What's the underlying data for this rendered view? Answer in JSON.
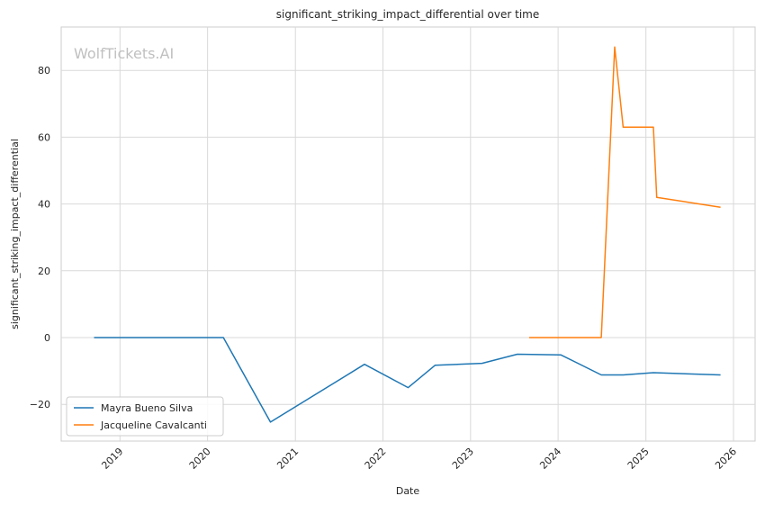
{
  "chart_data": {
    "type": "line",
    "title": "significant_striking_impact_differential over time",
    "xlabel": "Date",
    "ylabel": "significant_striking_impact_differential",
    "watermark": "WolfTickets.AI",
    "xlim": [
      "2018-05-01",
      "2026-04-01"
    ],
    "ylim": [
      -31,
      93
    ],
    "xticks": [
      "2019",
      "2020",
      "2021",
      "2022",
      "2023",
      "2024",
      "2025",
      "2026"
    ],
    "yticks": [
      -20,
      0,
      20,
      40,
      60,
      80
    ],
    "ytick_labels": [
      "−20",
      "0",
      "20",
      "40",
      "60",
      "80"
    ],
    "grid": true,
    "legend_position": "lower-left",
    "series": [
      {
        "name": "Mayra Bueno Silva",
        "color": "#1f77b4",
        "points": [
          {
            "x": "2018-09-15",
            "y": 0
          },
          {
            "x": "2020-03-07",
            "y": 0
          },
          {
            "x": "2020-09-19",
            "y": -25.3
          },
          {
            "x": "2021-10-16",
            "y": -8
          },
          {
            "x": "2022-04-16",
            "y": -15
          },
          {
            "x": "2022-08-06",
            "y": -8.3
          },
          {
            "x": "2023-02-18",
            "y": -7.7
          },
          {
            "x": "2023-07-15",
            "y": -5
          },
          {
            "x": "2024-01-13",
            "y": -5.2
          },
          {
            "x": "2024-06-29",
            "y": -11.2
          },
          {
            "x": "2024-09-28",
            "y": -11.2
          },
          {
            "x": "2025-02-01",
            "y": -10.5
          },
          {
            "x": "2025-11-08",
            "y": -11.2
          }
        ]
      },
      {
        "name": "Jacqueline Cavalcanti",
        "color": "#ff7f0e",
        "points": [
          {
            "x": "2023-09-02",
            "y": 0
          },
          {
            "x": "2024-06-29",
            "y": 0
          },
          {
            "x": "2024-08-24",
            "y": 87
          },
          {
            "x": "2024-09-28",
            "y": 63
          },
          {
            "x": "2025-02-01",
            "y": 63
          },
          {
            "x": "2025-02-15",
            "y": 42
          },
          {
            "x": "2025-11-08",
            "y": 39
          }
        ]
      }
    ]
  }
}
